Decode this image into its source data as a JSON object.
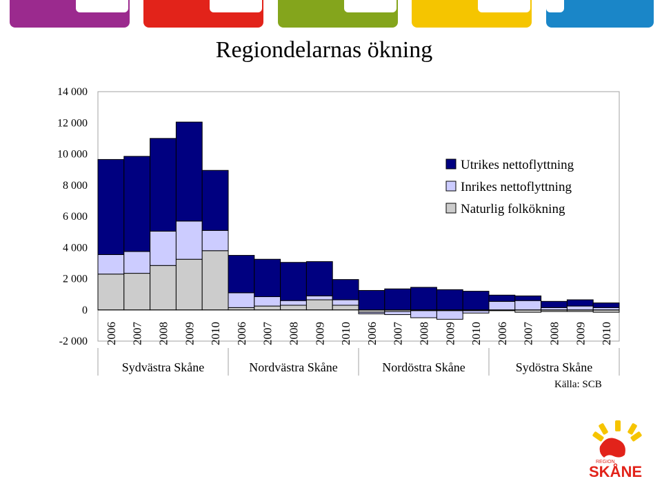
{
  "header": {
    "tabs": [
      {
        "name": "purple",
        "color": "#9b2a8e"
      },
      {
        "name": "red",
        "color": "#e2231a"
      },
      {
        "name": "green",
        "color": "#84a51c"
      },
      {
        "name": "yellow",
        "color": "#f5c500"
      },
      {
        "name": "blue",
        "color": "#1a86c8"
      }
    ]
  },
  "source": "Källa: SCB",
  "logo": {
    "text_region": "REGION",
    "text_name": "SKÅNE",
    "color": "#e2231a",
    "accent": "#f6c400"
  },
  "chart_data": {
    "type": "bar",
    "stacked": true,
    "title": "Regiondelarnas ökning",
    "ylim": [
      -2000,
      14000
    ],
    "yticks": [
      -2000,
      0,
      2000,
      4000,
      6000,
      8000,
      10000,
      12000,
      14000
    ],
    "ytick_labels": [
      "-2 000",
      "0",
      "2 000",
      "4 000",
      "6 000",
      "8 000",
      "10 000",
      "12 000",
      "14 000"
    ],
    "grid": false,
    "legend": "right",
    "groups": [
      {
        "name": "Sydvästra Skåne",
        "years": [
          "2006",
          "2007",
          "2008",
          "2009",
          "2010"
        ]
      },
      {
        "name": "Nordvästra Skåne",
        "years": [
          "2006",
          "2007",
          "2008",
          "2009",
          "2010"
        ]
      },
      {
        "name": "Nordöstra Skåne",
        "years": [
          "2006",
          "2007",
          "2008",
          "2009",
          "2010"
        ]
      },
      {
        "name": "Sydöstra Skåne",
        "years": [
          "2006",
          "2007",
          "2008",
          "2009",
          "2010"
        ]
      }
    ],
    "series": [
      {
        "name": "Naturlig folkökning",
        "color": "#cccccc",
        "values": [
          2300,
          2350,
          2850,
          3250,
          3800,
          150,
          250,
          300,
          650,
          300,
          -150,
          -100,
          -50,
          -50,
          -50,
          -50,
          -150,
          -100,
          -100,
          -150
        ]
      },
      {
        "name": "Inrikes nettoflyttning",
        "color": "#ccccff",
        "values": [
          1250,
          1400,
          2200,
          2450,
          1300,
          950,
          600,
          300,
          250,
          350,
          -100,
          -200,
          -450,
          -550,
          -150,
          550,
          600,
          150,
          250,
          150
        ]
      },
      {
        "name": "Utrikes nettoflyttning",
        "color": "#000080",
        "values": [
          6100,
          6100,
          5950,
          6350,
          3850,
          2400,
          2400,
          2450,
          2200,
          1300,
          1250,
          1350,
          1450,
          1300,
          1200,
          400,
          300,
          400,
          400,
          300
        ]
      }
    ]
  }
}
